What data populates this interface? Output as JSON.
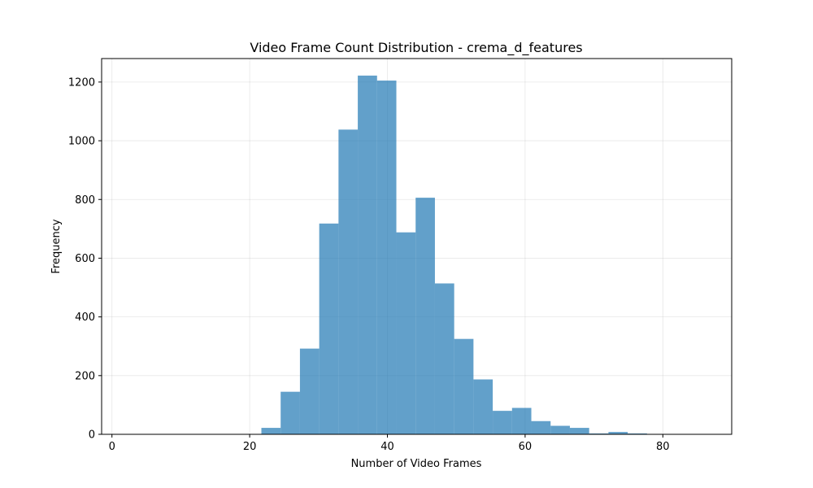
{
  "chart_data": {
    "type": "bar",
    "subtype": "histogram",
    "title": "Video Frame Count Distribution - crema_d_features",
    "xlabel": "Number of Video Frames",
    "ylabel": "Frequency",
    "xlim": [
      -1.5,
      90
    ],
    "ylim": [
      0,
      1280
    ],
    "xticks": [
      0,
      20,
      40,
      60,
      80
    ],
    "yticks": [
      0,
      200,
      400,
      600,
      800,
      1000,
      1200
    ],
    "grid": true,
    "bar_color": "#1f77b4",
    "bar_alpha": 0.7,
    "bins": [
      {
        "x0": 21.7,
        "x1": 24.5,
        "value": 22
      },
      {
        "x0": 24.5,
        "x1": 27.3,
        "value": 145
      },
      {
        "x0": 27.3,
        "x1": 30.1,
        "value": 292
      },
      {
        "x0": 30.1,
        "x1": 32.9,
        "value": 718
      },
      {
        "x0": 32.9,
        "x1": 35.7,
        "value": 1038
      },
      {
        "x0": 35.7,
        "x1": 38.5,
        "value": 1222
      },
      {
        "x0": 38.5,
        "x1": 41.3,
        "value": 1205
      },
      {
        "x0": 41.3,
        "x1": 44.1,
        "value": 688
      },
      {
        "x0": 44.1,
        "x1": 46.9,
        "value": 806
      },
      {
        "x0": 46.9,
        "x1": 49.7,
        "value": 514
      },
      {
        "x0": 49.7,
        "x1": 52.5,
        "value": 325
      },
      {
        "x0": 52.5,
        "x1": 55.3,
        "value": 187
      },
      {
        "x0": 55.3,
        "x1": 58.1,
        "value": 80
      },
      {
        "x0": 58.1,
        "x1": 60.9,
        "value": 90
      },
      {
        "x0": 60.9,
        "x1": 63.7,
        "value": 45
      },
      {
        "x0": 63.7,
        "x1": 66.5,
        "value": 29
      },
      {
        "x0": 66.5,
        "x1": 69.3,
        "value": 22
      },
      {
        "x0": 69.3,
        "x1": 72.1,
        "value": 3
      },
      {
        "x0": 72.1,
        "x1": 74.9,
        "value": 8
      },
      {
        "x0": 74.9,
        "x1": 77.7,
        "value": 3
      },
      {
        "x0": 77.7,
        "x1": 80.5,
        "value": 1
      },
      {
        "x0": 80.5,
        "x1": 83.3,
        "value": 0
      },
      {
        "x0": 83.3,
        "x1": 86.1,
        "value": 1
      }
    ]
  }
}
